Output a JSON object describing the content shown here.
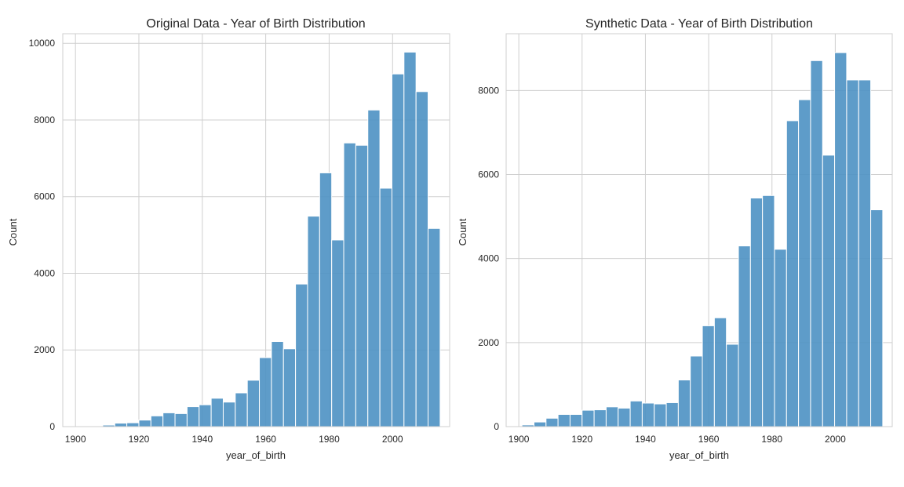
{
  "chart_data": [
    {
      "type": "bar",
      "title": "Original Data - Year of Birth Distribution",
      "xlabel": "year_of_birth",
      "ylabel": "Count",
      "xlim": [
        1896,
        2018
      ],
      "ylim": [
        0,
        10250
      ],
      "xticks": [
        1900,
        1920,
        1940,
        1960,
        1980,
        2000
      ],
      "yticks": [
        0,
        2000,
        4000,
        6000,
        8000,
        10000
      ],
      "bin_width": 3.8,
      "grid": true,
      "color": "#4c91c3",
      "bin_starts": [
        1901.0,
        1904.8,
        1908.6,
        1912.4,
        1916.2,
        1920.0,
        1923.8,
        1927.6,
        1931.4,
        1935.2,
        1939.0,
        1942.8,
        1946.6,
        1950.4,
        1954.2,
        1958.0,
        1961.8,
        1965.6,
        1969.4,
        1973.2,
        1977.0,
        1980.8,
        1984.6,
        1988.4,
        1992.2,
        1996.0,
        1999.8,
        2003.6,
        2007.4,
        2011.2
      ],
      "values": [
        5,
        10,
        40,
        90,
        100,
        170,
        280,
        360,
        340,
        520,
        570,
        740,
        640,
        880,
        1210,
        1800,
        2220,
        2030,
        3720,
        5490,
        6620,
        4870,
        7400,
        7340,
        8260,
        6220,
        9200,
        9770,
        8740,
        5170
      ]
    },
    {
      "type": "bar",
      "title": "Synthetic Data - Year of Birth Distribution",
      "xlabel": "year_of_birth",
      "ylabel": "Count",
      "xlim": [
        1896,
        2018
      ],
      "ylim": [
        0,
        9350
      ],
      "xticks": [
        1900,
        1920,
        1940,
        1960,
        1980,
        2000
      ],
      "yticks": [
        0,
        2000,
        4000,
        6000,
        8000
      ],
      "bin_width": 3.8,
      "grid": true,
      "color": "#4c91c3",
      "bin_starts": [
        1901.0,
        1904.8,
        1908.6,
        1912.4,
        1916.2,
        1920.0,
        1923.8,
        1927.6,
        1931.4,
        1935.2,
        1939.0,
        1942.8,
        1946.6,
        1950.4,
        1954.2,
        1958.0,
        1961.8,
        1965.6,
        1969.4,
        1973.2,
        1977.0,
        1980.8,
        1984.6,
        1988.4,
        1992.2,
        1996.0,
        1999.8,
        2003.6,
        2007.4,
        2011.2
      ],
      "values": [
        40,
        110,
        200,
        290,
        290,
        390,
        400,
        470,
        440,
        610,
        560,
        540,
        570,
        1110,
        1680,
        2400,
        2590,
        1960,
        4300,
        5440,
        5500,
        4220,
        7280,
        7780,
        8710,
        6460,
        8900,
        8250,
        8250,
        5160
      ]
    }
  ]
}
